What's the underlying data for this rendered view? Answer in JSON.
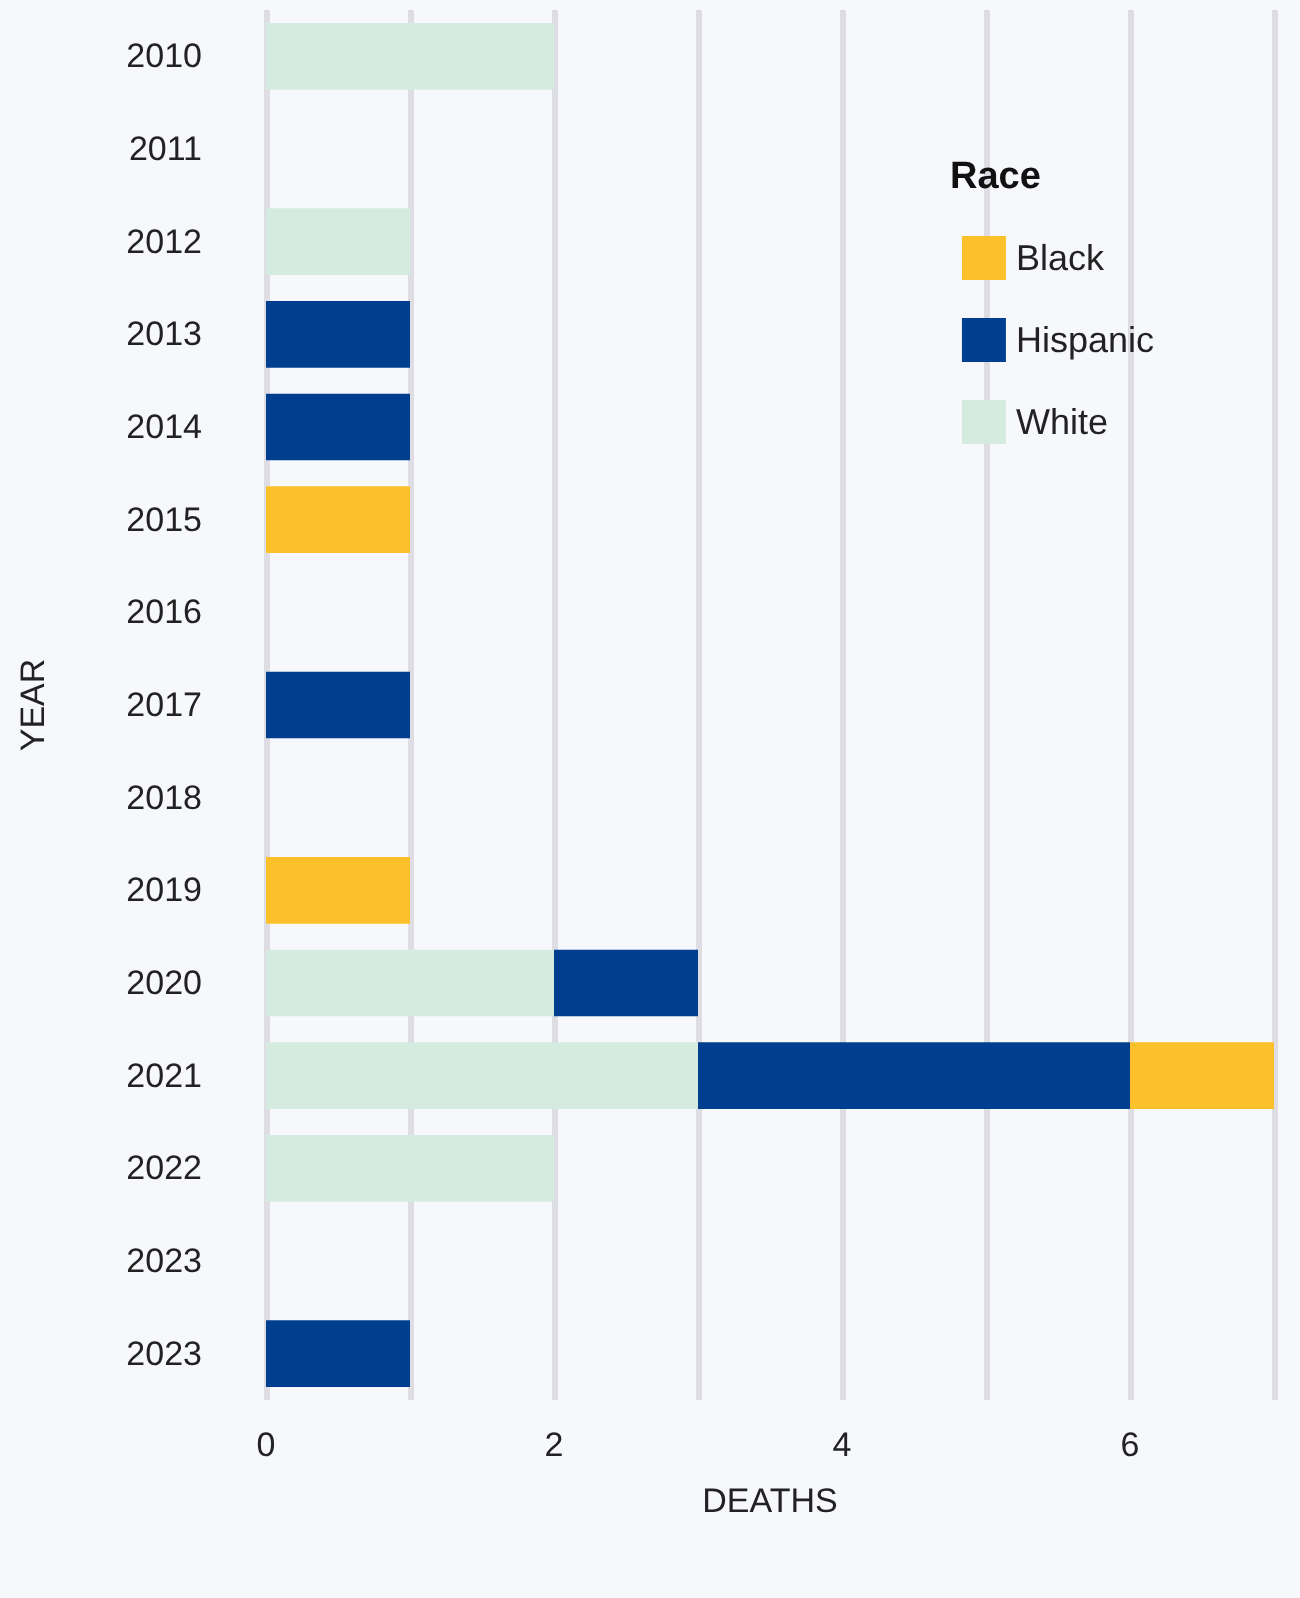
{
  "chart_data": {
    "type": "bar",
    "orientation": "horizontal",
    "stacked": true,
    "xlabel": "DEATHS",
    "ylabel": "YEAR",
    "legend_title": "Race",
    "categories": [
      "2010",
      "2011",
      "2012",
      "2013",
      "2014",
      "2015",
      "2016",
      "2017",
      "2018",
      "2019",
      "2020",
      "2021",
      "2022",
      "2023",
      "2023"
    ],
    "series": [
      {
        "name": "White",
        "color": "#d5ebdf",
        "values": [
          2,
          null,
          1,
          null,
          null,
          null,
          null,
          null,
          null,
          null,
          2,
          3,
          2,
          null,
          null
        ]
      },
      {
        "name": "Hispanic",
        "color": "#003f8f",
        "values": [
          null,
          null,
          null,
          1,
          1,
          null,
          null,
          1,
          null,
          null,
          1,
          3,
          null,
          null,
          1
        ]
      },
      {
        "name": "Black",
        "color": "#fcc12a",
        "values": [
          null,
          null,
          null,
          null,
          null,
          1,
          null,
          null,
          null,
          1,
          null,
          1,
          null,
          null,
          null
        ]
      }
    ],
    "xlim": [
      0,
      7
    ],
    "xticks": [
      0,
      {
        "value": 1,
        "label": null
      },
      2,
      {
        "value": 3,
        "label": null
      },
      4,
      {
        "value": 5,
        "label": null
      },
      6,
      {
        "value": 7,
        "label": null
      }
    ],
    "grid": "x",
    "legend": "top right"
  }
}
